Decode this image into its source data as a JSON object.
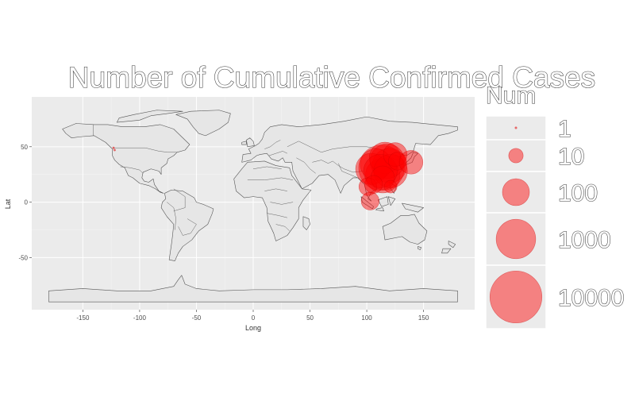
{
  "chart_data": {
    "type": "bubble-map",
    "title": "Number of Cumulative Confirmed Cases",
    "xlabel": "Long",
    "ylabel": "Lat",
    "xlim": [
      -195,
      195
    ],
    "ylim": [
      -97,
      95
    ],
    "xticks": [
      -150,
      -100,
      -50,
      0,
      50,
      100,
      150
    ],
    "yticks": [
      -50,
      0,
      50
    ],
    "grid": true,
    "legend": {
      "title": "Num",
      "position": "right",
      "entries": [
        "1",
        "10",
        "100",
        "1000",
        "10000"
      ],
      "values": [
        1,
        10,
        100,
        1000,
        10000
      ]
    },
    "marker_color": "#ff0000",
    "marker_alpha": 0.45,
    "points": [
      {
        "long": 113,
        "lat": 31,
        "num": 10000
      },
      {
        "long": 120,
        "lat": 33,
        "num": 1000
      },
      {
        "long": 114,
        "lat": 24,
        "num": 1000
      },
      {
        "long": 118,
        "lat": 37,
        "num": 1000
      },
      {
        "long": 108,
        "lat": 34,
        "num": 500
      },
      {
        "long": 104,
        "lat": 30,
        "num": 500
      },
      {
        "long": 116,
        "lat": 40,
        "num": 500
      },
      {
        "long": 121,
        "lat": 28,
        "num": 800
      },
      {
        "long": 112,
        "lat": 28,
        "num": 800
      },
      {
        "long": 125,
        "lat": 43,
        "num": 100
      },
      {
        "long": 127,
        "lat": 37,
        "num": 30
      },
      {
        "long": 139,
        "lat": 36,
        "num": 100
      },
      {
        "long": 101,
        "lat": 14,
        "num": 30
      },
      {
        "long": 114,
        "lat": 22,
        "num": 100
      },
      {
        "long": 121,
        "lat": 14,
        "num": 10
      },
      {
        "long": 103,
        "lat": 1,
        "num": 30
      },
      {
        "long": 106,
        "lat": 16,
        "num": 30
      },
      {
        "long": -122,
        "lat": 47,
        "num": 1
      },
      {
        "long": -123,
        "lat": 49,
        "num": 1
      }
    ]
  }
}
